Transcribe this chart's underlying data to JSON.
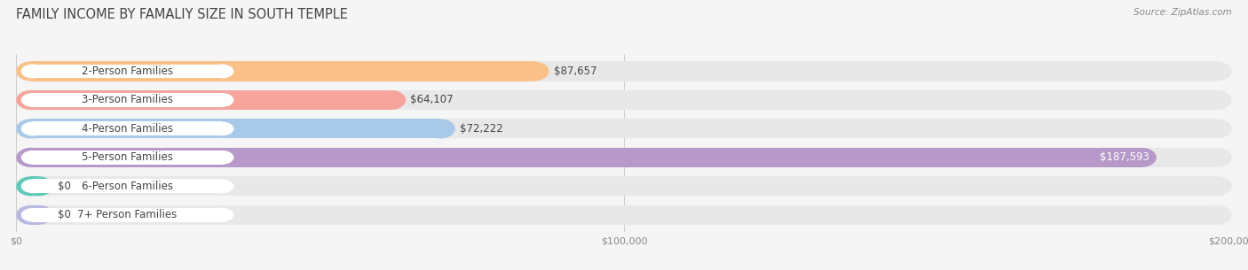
{
  "title": "FAMILY INCOME BY FAMALIY SIZE IN SOUTH TEMPLE",
  "source": "Source: ZipAtlas.com",
  "categories": [
    "2-Person Families",
    "3-Person Families",
    "4-Person Families",
    "5-Person Families",
    "6-Person Families",
    "7+ Person Families"
  ],
  "values": [
    87657,
    64107,
    72222,
    187593,
    0,
    0
  ],
  "bar_colors": [
    "#f9c088",
    "#f5a59b",
    "#a9c9e8",
    "#b699c8",
    "#5ec9b8",
    "#b9b9e1"
  ],
  "xmax": 200000,
  "xtick_labels": [
    "$0",
    "$100,000",
    "$200,000"
  ],
  "background_color": "#f5f5f5",
  "bar_background": "#e8e8e8",
  "value_labels": [
    "$87,657",
    "$64,107",
    "$72,222",
    "$187,593",
    "$0",
    "$0"
  ],
  "title_fontsize": 10.5,
  "label_fontsize": 8.5,
  "value_fontsize": 8.5,
  "source_fontsize": 7.5
}
